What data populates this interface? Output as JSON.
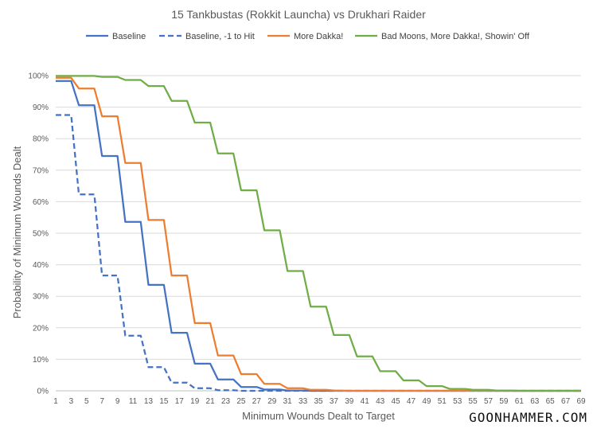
{
  "brand": "GOONHAMMER.COM",
  "chart_data": {
    "type": "line",
    "title": "15 Tankbustas (Rokkit Launcha) vs Drukhari Raider",
    "xlabel": "Minimum Wounds Dealt to Target",
    "ylabel": "Probability of Minimum Wounds Dealt",
    "xlim": [
      1,
      69
    ],
    "ylim": [
      0,
      1
    ],
    "x_ticks": [
      1,
      3,
      5,
      7,
      9,
      11,
      13,
      15,
      17,
      19,
      21,
      23,
      25,
      27,
      29,
      31,
      33,
      35,
      37,
      39,
      41,
      43,
      45,
      47,
      49,
      51,
      53,
      55,
      57,
      59,
      61,
      63,
      65,
      67,
      69
    ],
    "y_ticks": [
      {
        "value": 0,
        "label": "0%"
      },
      {
        "value": 0.1,
        "label": "10%"
      },
      {
        "value": 0.2,
        "label": "20%"
      },
      {
        "value": 0.3,
        "label": "30%"
      },
      {
        "value": 0.4,
        "label": "40%"
      },
      {
        "value": 0.5,
        "label": "50%"
      },
      {
        "value": 0.6,
        "label": "60%"
      },
      {
        "value": 0.7,
        "label": "70%"
      },
      {
        "value": 0.8,
        "label": "80%"
      },
      {
        "value": 0.9,
        "label": "90%"
      },
      {
        "value": 1.0,
        "label": "100%"
      }
    ],
    "grid": true,
    "legend_position": "top",
    "series": [
      {
        "name": "Baseline",
        "color": "#4472C4",
        "dash": "solid",
        "points": [
          [
            1,
            0.983
          ],
          [
            3,
            0.983
          ],
          [
            4,
            0.906
          ],
          [
            6,
            0.906
          ],
          [
            7,
            0.745
          ],
          [
            9,
            0.745
          ],
          [
            10,
            0.536
          ],
          [
            12,
            0.536
          ],
          [
            13,
            0.336
          ],
          [
            15,
            0.336
          ],
          [
            16,
            0.184
          ],
          [
            18,
            0.184
          ],
          [
            19,
            0.086
          ],
          [
            21,
            0.086
          ],
          [
            22,
            0.036
          ],
          [
            24,
            0.036
          ],
          [
            25,
            0.012
          ],
          [
            27,
            0.012
          ],
          [
            28,
            0.004
          ],
          [
            30,
            0.004
          ],
          [
            31,
            0.001
          ],
          [
            33,
            0.001
          ],
          [
            34,
            0
          ],
          [
            69,
            0
          ]
        ]
      },
      {
        "name": "Baseline, -1 to Hit",
        "color": "#4472C4",
        "dash": "dashed",
        "points": [
          [
            1,
            0.875
          ],
          [
            3,
            0.875
          ],
          [
            4,
            0.623
          ],
          [
            6,
            0.623
          ],
          [
            7,
            0.366
          ],
          [
            9,
            0.366
          ],
          [
            10,
            0.175
          ],
          [
            12,
            0.175
          ],
          [
            13,
            0.075
          ],
          [
            15,
            0.075
          ],
          [
            16,
            0.026
          ],
          [
            18,
            0.026
          ],
          [
            19,
            0.008
          ],
          [
            21,
            0.008
          ],
          [
            22,
            0.002
          ],
          [
            24,
            0.002
          ],
          [
            25,
            0
          ],
          [
            69,
            0
          ]
        ]
      },
      {
        "name": "More Dakka!",
        "color": "#ED7D31",
        "dash": "solid",
        "points": [
          [
            1,
            0.993
          ],
          [
            3,
            0.993
          ],
          [
            4,
            0.959
          ],
          [
            6,
            0.959
          ],
          [
            7,
            0.871
          ],
          [
            9,
            0.871
          ],
          [
            10,
            0.723
          ],
          [
            12,
            0.723
          ],
          [
            13,
            0.542
          ],
          [
            15,
            0.542
          ],
          [
            16,
            0.366
          ],
          [
            18,
            0.366
          ],
          [
            19,
            0.215
          ],
          [
            21,
            0.215
          ],
          [
            22,
            0.112
          ],
          [
            24,
            0.112
          ],
          [
            25,
            0.053
          ],
          [
            27,
            0.053
          ],
          [
            28,
            0.022
          ],
          [
            30,
            0.022
          ],
          [
            31,
            0.008
          ],
          [
            33,
            0.008
          ],
          [
            34,
            0.003
          ],
          [
            36,
            0.003
          ],
          [
            37,
            0.001
          ],
          [
            39,
            0
          ],
          [
            69,
            0
          ]
        ]
      },
      {
        "name": "Bad Moons, More Dakka!, Showin' Off",
        "color": "#70AD47",
        "dash": "solid",
        "points": [
          [
            1,
            0.999
          ],
          [
            6,
            0.999
          ],
          [
            7,
            0.996
          ],
          [
            9,
            0.996
          ],
          [
            10,
            0.986
          ],
          [
            12,
            0.986
          ],
          [
            13,
            0.967
          ],
          [
            15,
            0.967
          ],
          [
            16,
            0.92
          ],
          [
            18,
            0.92
          ],
          [
            19,
            0.851
          ],
          [
            21,
            0.851
          ],
          [
            22,
            0.753
          ],
          [
            24,
            0.753
          ],
          [
            25,
            0.636
          ],
          [
            27,
            0.636
          ],
          [
            28,
            0.509
          ],
          [
            30,
            0.509
          ],
          [
            31,
            0.38
          ],
          [
            33,
            0.38
          ],
          [
            34,
            0.267
          ],
          [
            36,
            0.267
          ],
          [
            37,
            0.177
          ],
          [
            39,
            0.177
          ],
          [
            40,
            0.109
          ],
          [
            42,
            0.109
          ],
          [
            43,
            0.062
          ],
          [
            45,
            0.062
          ],
          [
            46,
            0.033
          ],
          [
            48,
            0.033
          ],
          [
            49,
            0.015
          ],
          [
            51,
            0.015
          ],
          [
            52,
            0.006
          ],
          [
            54,
            0.006
          ],
          [
            55,
            0.003
          ],
          [
            57,
            0.003
          ],
          [
            58,
            0.001
          ],
          [
            60,
            0.001
          ],
          [
            61,
            0
          ],
          [
            69,
            0
          ]
        ]
      }
    ]
  }
}
